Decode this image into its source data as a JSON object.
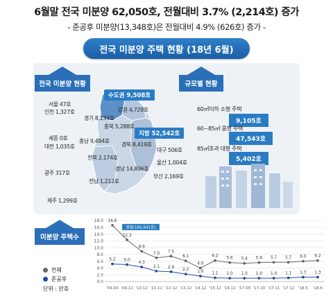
{
  "header": {
    "headline": "6월말 전국 미분양 62,050호, 전월대비 3.7% (2,214호) 증가",
    "subline": "- 준공후 미분양(13,348호)은 전월대비 4.9% (626호) 증가 -",
    "banner": "전국 미분양 주택 현황 (18년 6월)"
  },
  "sections": {
    "national_label": "전국 미분양 현황",
    "size_label": "규모별 현황",
    "trend_label": "미분양 주택수"
  },
  "regions": {
    "capital_tag": "수도권 9,508호",
    "local_tag": "지방 52,542호",
    "seoul": "서울    47호",
    "incheon": "인천 1,327호",
    "gyeonggi": "경기 8,134호",
    "gangwon": "강원 4,729호",
    "chungbuk": "충북 5,288호",
    "sejong": "세종 0호",
    "daejeon": "대전 1,035호",
    "chungnam": "충남 9,494호",
    "gyeongbuk": "경북 8,419호",
    "daegu": "대구 506호",
    "jeonbuk": "전북 2,174호",
    "ulsan": "울산 1,004호",
    "gwangju": "광주 317호",
    "gyeongnam": "경남 14,896호",
    "jeonnam": "전남 1,212호",
    "busan": "부산 2,169호",
    "jeju": "제주 1,299호"
  },
  "sizes": [
    {
      "label": "60㎡이하 소형 주택",
      "value": "9,105호"
    },
    {
      "label": "60~85㎡ 중형 주택",
      "value": "47,543호"
    },
    {
      "label": "85㎡초과 대형 주택",
      "value": "5,402호"
    }
  ],
  "colors": {
    "accent": "#2a7cc2",
    "total_series": "#666666",
    "post_series": "#1f4e9e"
  },
  "chart_data": {
    "type": "line",
    "title": "",
    "xlabel": "",
    "ylabel": "",
    "unit_label": "단위 : 만호",
    "ylim": [
      0,
      18
    ],
    "yticks": [
      "0.0",
      "2.0",
      "4.0",
      "6.0",
      "8.0",
      "10.0",
      "12.0",
      "14.0",
      "16.0",
      "18.0"
    ],
    "categories": [
      "'09.03",
      "'09.12",
      "'10.12",
      "'11.12",
      "'12.12",
      "'13.12",
      "'14.12",
      "'15.12",
      "'16.12",
      "'17.09",
      "'17.10",
      "'17.11",
      "'17.12",
      "'18.5",
      "'18.6"
    ],
    "annotation": "정점(165,641호)",
    "series": [
      {
        "name": "전체",
        "values": [
          16.6,
          12.3,
          8.9,
          7.0,
          7.5,
          6.1,
          4.0,
          6.2,
          5.6,
          5.4,
          5.6,
          5.7,
          5.7,
          6.0,
          6.2
        ],
        "labels": [
          "16.6",
          "12.3",
          "8.9",
          "7.0",
          "7.5",
          "6.1",
          "4.0",
          "6.2",
          "5.6",
          "5.4",
          "5.6",
          "5.7",
          "5.7",
          "6.0",
          "6.2"
        ]
      },
      {
        "name": "준공후",
        "values": [
          5.2,
          5.0,
          4.3,
          3.1,
          2.9,
          2.2,
          1.6,
          1.1,
          1.0,
          1.0,
          1.0,
          1.0,
          1.1,
          1.3,
          1.3
        ],
        "labels": [
          "5.2",
          "5.0",
          "4.3",
          "3.1",
          "2.9",
          "2.2",
          "1.6",
          "1.1",
          "1.0",
          "1.0",
          "1.0",
          "1.0",
          "1.1",
          "1.3",
          "1.3"
        ]
      }
    ]
  }
}
